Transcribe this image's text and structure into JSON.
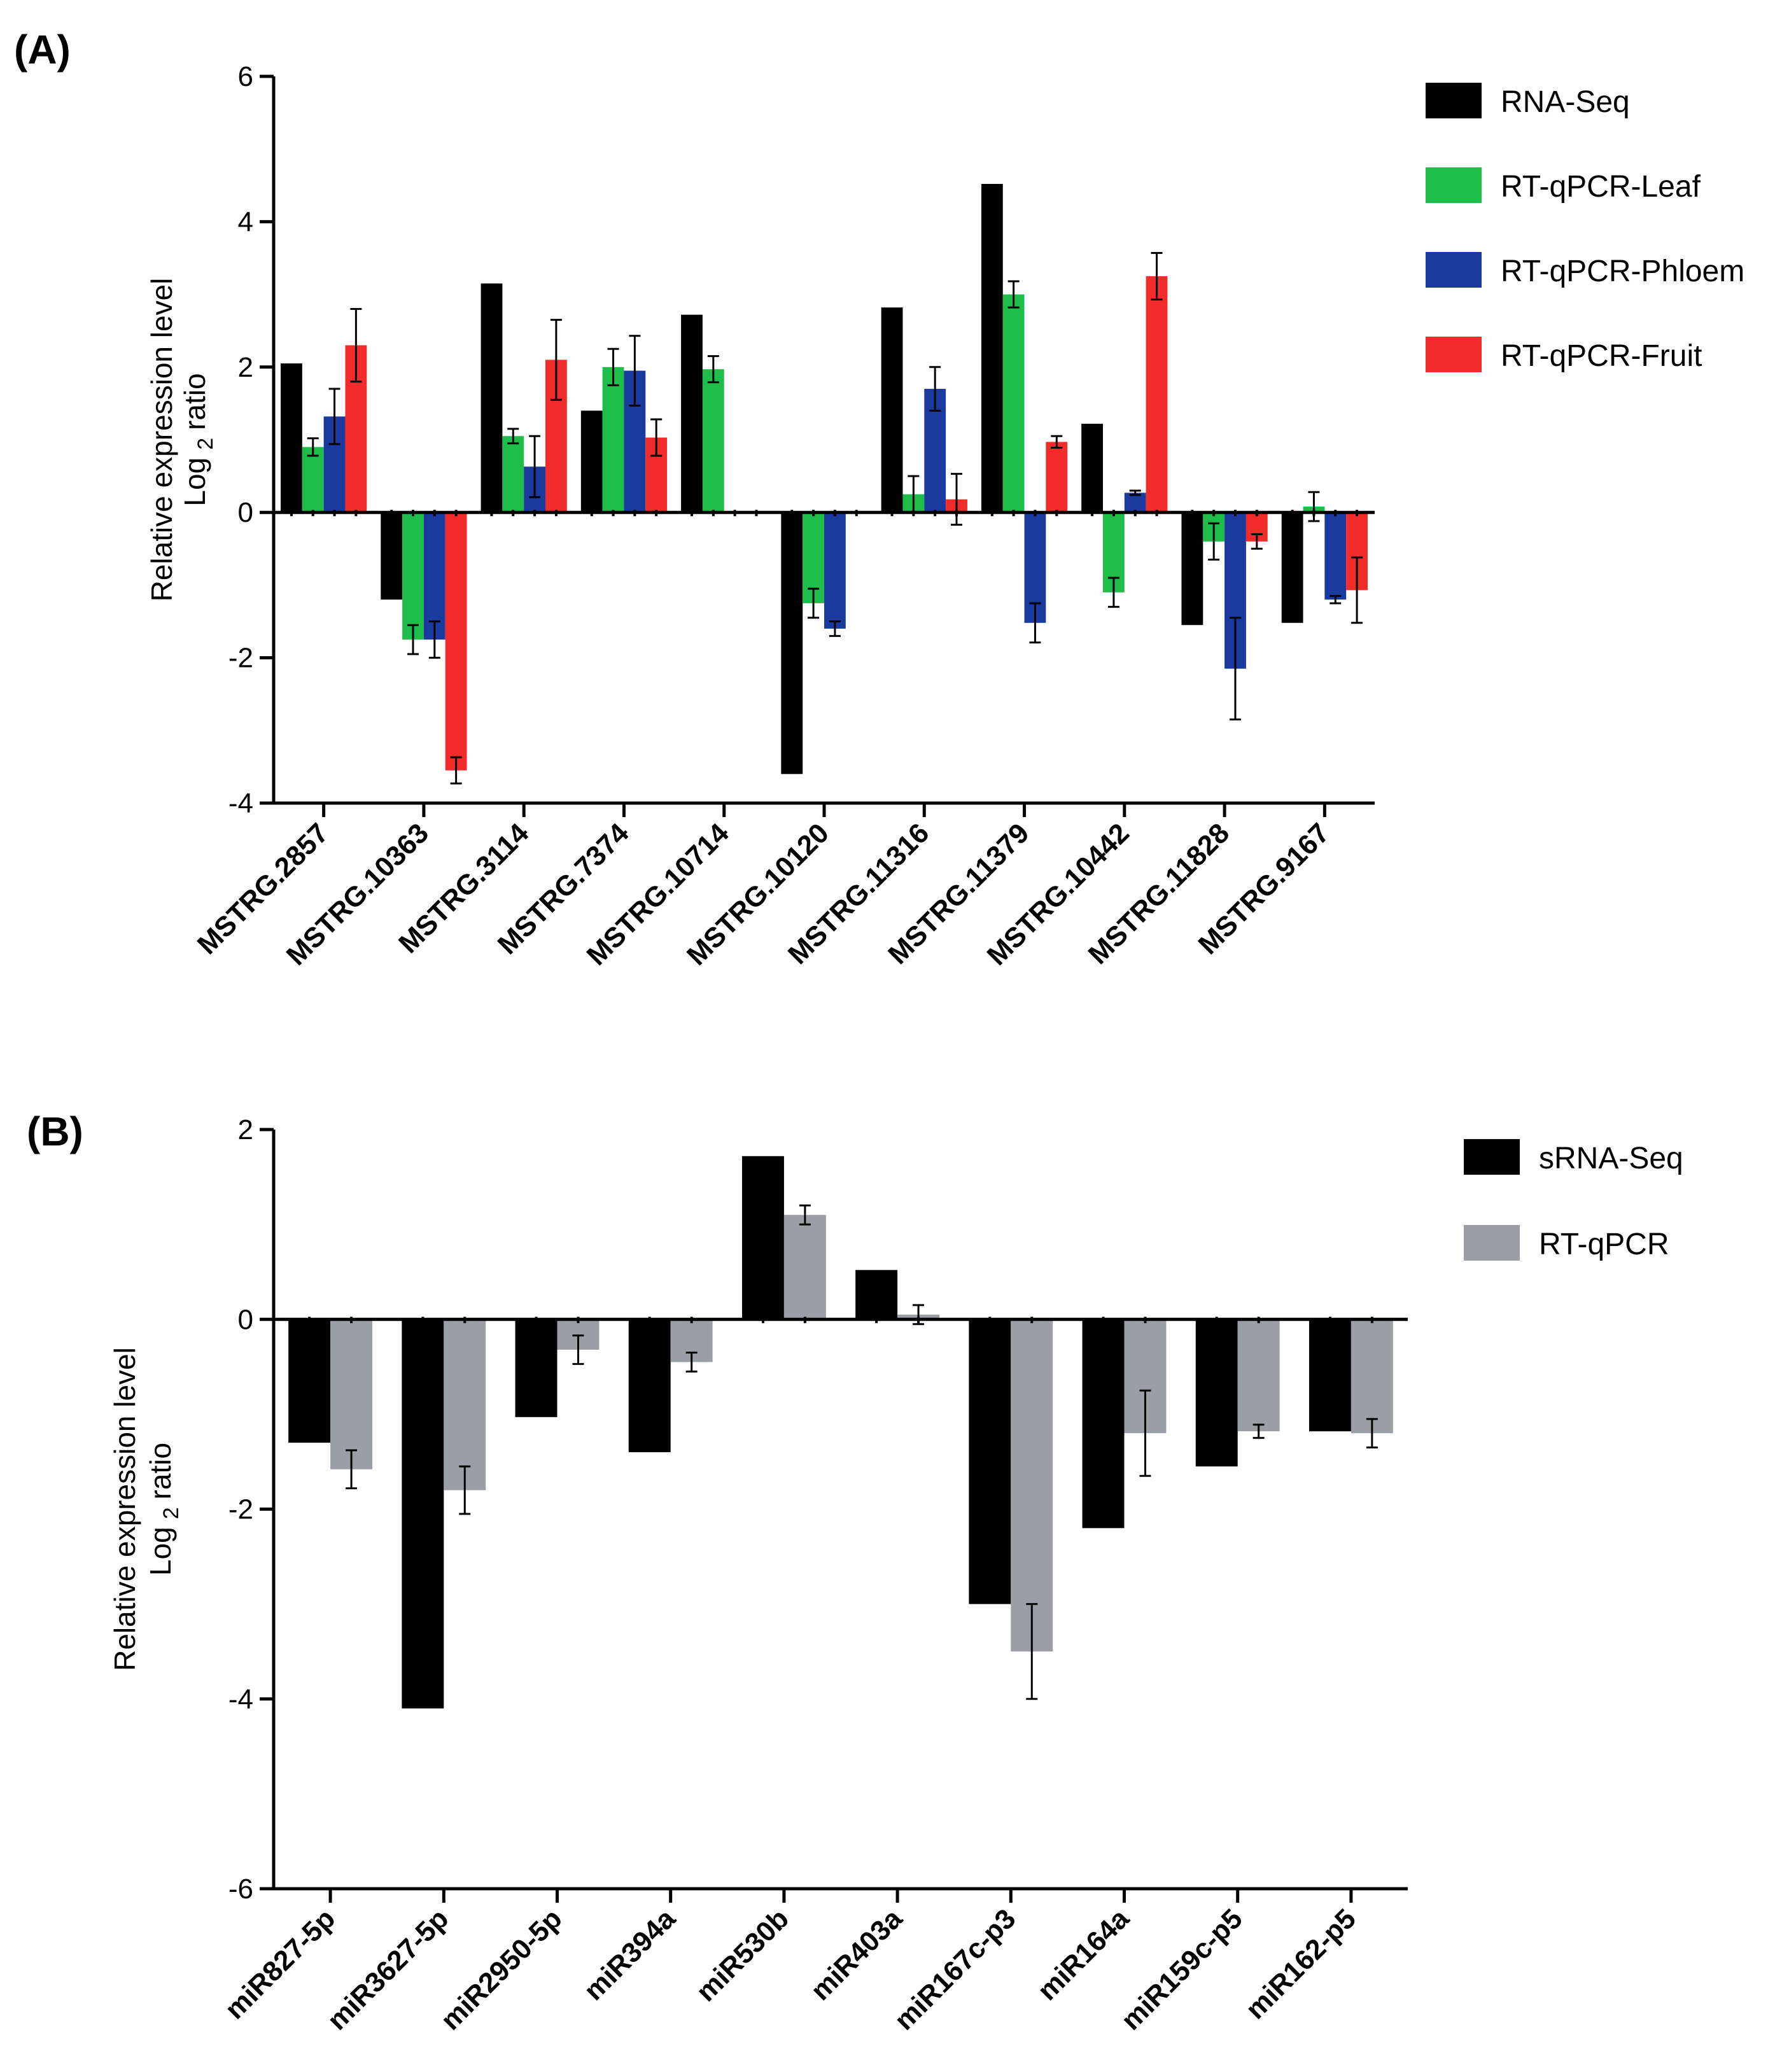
{
  "chart_data": [
    {
      "panel_label": "(A)",
      "type": "bar",
      "ylabel": "Relative expression level",
      "ylabel_sub": "Log 2 ratio",
      "ylabel_sub_parts": [
        "Log",
        "2",
        "ratio"
      ],
      "ylim": [
        -4,
        6
      ],
      "yticks": [
        -4,
        -2,
        0,
        2,
        4,
        6
      ],
      "ytick_labels": [
        "-4",
        "-2",
        "0",
        "2",
        "4",
        "6"
      ],
      "legend_position": "right",
      "categories": [
        "MSTRG.2857",
        "MSTRG.10363",
        "MSTRG.3114",
        "MSTRG.7374",
        "MSTRG.10714",
        "MSTRG.10120",
        "MSTRG.11316",
        "MSTRG.11379",
        "MSTRG.10442",
        "MSTRG.11828",
        "MSTRG.9167"
      ],
      "series": [
        {
          "name": "RNA-Seq",
          "color": "#000000",
          "values": [
            2.05,
            -1.2,
            3.15,
            1.4,
            2.72,
            -3.6,
            2.82,
            4.52,
            1.22,
            -1.55,
            -1.52
          ],
          "errors": [
            0,
            0,
            0,
            0,
            0,
            0,
            0,
            0,
            0,
            0,
            0
          ]
        },
        {
          "name": "RT-qPCR-Leaf",
          "color": "#1fbe4b",
          "values": [
            0.9,
            -1.75,
            1.05,
            2.0,
            1.97,
            -1.25,
            0.25,
            3.0,
            -1.1,
            -0.4,
            0.08
          ],
          "errors": [
            0.12,
            0.2,
            0.1,
            0.25,
            0.18,
            0.2,
            0.25,
            0.18,
            0.2,
            0.25,
            0.2
          ]
        },
        {
          "name": "RT-qPCR-Phloem",
          "color": "#1a3a9e",
          "values": [
            1.32,
            -1.75,
            0.63,
            1.95,
            0.0,
            -1.6,
            1.7,
            -1.52,
            0.27,
            -2.15,
            -1.2
          ],
          "errors": [
            0.38,
            0.25,
            0.42,
            0.48,
            0,
            0.1,
            0.3,
            0.27,
            0.03,
            0.7,
            0.05
          ]
        },
        {
          "name": "RT-qPCR-Fruit",
          "color": "#f22b2b",
          "values": [
            2.3,
            -3.55,
            2.1,
            1.03,
            0.0,
            0.0,
            0.18,
            0.97,
            3.25,
            -0.4,
            -1.07
          ],
          "errors": [
            0.5,
            0.18,
            0.55,
            0.25,
            0,
            0,
            0.35,
            0.08,
            0.32,
            0.1,
            0.45
          ]
        }
      ]
    },
    {
      "panel_label": "(B)",
      "type": "bar",
      "ylabel": "Relative expression level",
      "ylabel_sub": "Log 2 ratio",
      "ylabel_sub_parts": [
        "Log",
        "2",
        "ratio"
      ],
      "ylim": [
        -6,
        2
      ],
      "yticks": [
        -6,
        -4,
        -2,
        0,
        2
      ],
      "ytick_labels": [
        "-6",
        "-4",
        "-2",
        "0",
        "2"
      ],
      "legend_position": "right",
      "categories": [
        "miR827-5p",
        "miR3627-5p",
        "miR2950-5p",
        "miR394a",
        "miR530b",
        "miR403a",
        "miR167c-p3",
        "miR164a",
        "miR159c-p5",
        "miR162-p5"
      ],
      "series": [
        {
          "name": "sRNA-Seq",
          "color": "#000000",
          "values": [
            -1.3,
            -4.1,
            -1.03,
            -1.4,
            1.72,
            0.52,
            -3.0,
            -2.2,
            -1.55,
            -1.18
          ],
          "errors": [
            0,
            0,
            0,
            0,
            0,
            0,
            0,
            0,
            0,
            0
          ]
        },
        {
          "name": "RT-qPCR",
          "color": "#9b9ea6",
          "values": [
            -1.58,
            -1.8,
            -0.32,
            -0.45,
            1.1,
            0.05,
            -3.5,
            -1.2,
            -1.18,
            -1.2
          ],
          "errors": [
            0.2,
            0.25,
            0.15,
            0.1,
            0.1,
            0.1,
            0.5,
            0.45,
            0.07,
            0.15
          ]
        }
      ]
    }
  ]
}
